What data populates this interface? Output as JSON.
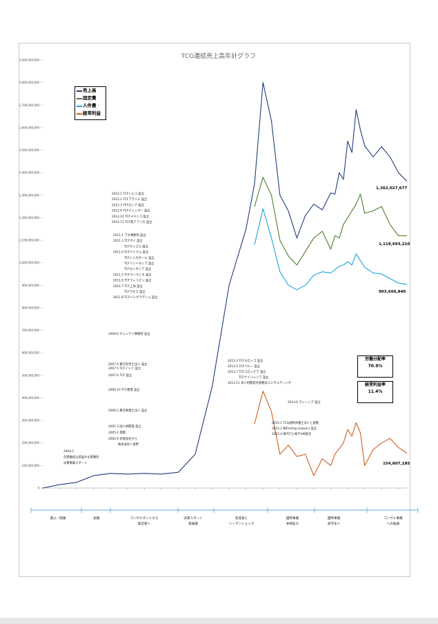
{
  "title": "TCG連結売上高年計グラフ",
  "legend": [
    {
      "label": "売上高",
      "color": "#1f3a78"
    },
    {
      "label": "固定費",
      "color": "#4a7a2a"
    },
    {
      "label": "人件費",
      "color": "#1aa3d9"
    },
    {
      "label": "経常利益",
      "color": "#c8601e"
    }
  ],
  "y_ticks": [
    "0",
    "100,000,000",
    "200,000,000",
    "300,000,000",
    "400,000,000",
    "500,000,000",
    "600,000,000",
    "700,000,000",
    "800,000,000",
    "900,000,000",
    "1,000,000,000",
    "1,100,000,000",
    "1,200,000,000",
    "1,300,000,000",
    "1,400,000,000",
    "1,500,000,000",
    "1,600,000,000",
    "1,700,000,000",
    "1,800,000,000",
    "1,900,000,000"
  ],
  "end_labels": {
    "sales": "1,362,027,677",
    "fixed": "1,119,693,210",
    "personnel": "903,666,840",
    "profit": "154,807,185"
  },
  "kpi": [
    {
      "label": "労働分配率",
      "value": "70.9%"
    },
    {
      "label": "経常利益率",
      "value": "11.4%"
    }
  ],
  "annotations": {
    "start": [
      "2004.5",
      "久野康成公認会計士事務所",
      "派遣事業スタート"
    ],
    "left_group": [
      "2005.3 国人材開発 設立",
      "2005.4 増資",
      "2005.9 有限会社から",
      "株式会社へ変更",
      "2006.2 東京税理士法人 設立",
      "2006.10 TCF香港 設立",
      "2007.4 東京社労士法人 設立",
      "2007.5 TCFインド 設立",
      "2007.6 TCF 設立",
      "2009.6 チェンナイ事務所 設立"
    ],
    "asia_group": [
      "2011.1 ブネ事務所 設立",
      "2011.3 TCFタイ 設立",
      "TCFモンゴル 設立",
      "2011.4 TCFベトナム 設立",
      "TCFシンガポール 設立",
      "TCFインドネシア 設立",
      "TCFカンボジア 設立",
      "2011.5 TCFスリランカ 設立",
      "2011.6 TCFフィリピン 設立",
      "2011.7 TCF上海 設立",
      "TCFラオス 設立",
      "2011.8 TCFバングラデシュ 設立"
    ],
    "latam_group": [
      "2012.1 TCFトルコ 設立",
      "2012.2 TCFブラジル 設立",
      "2012.3 TCFロシア 設立",
      "2012.6 TCFミャンマー 設立",
      "2012.10 TCFメキシコ 設立",
      "2012.11 TCF南アフリカ 設立"
    ],
    "mid_group": [
      "2013.3 TCFモロッコ 設立",
      "2013.5 TCFペルー 設立",
      "2013.7 TCFコロンビア 設立",
      "TCFナイジェリア 設立",
      "2013.11 海人材開発を税務法コンサルティング"
    ],
    "malaysia": "2014.6 マレーシア 設立",
    "recent_group": [
      "2015.1 TCG国際弁護士法人と提携",
      "2015.2 株Finding Lawyers 設立",
      "2015.4 株TCFと株TCHK統合"
    ]
  },
  "phases": [
    [
      "選ぶ・開業"
    ],
    [
      "創業"
    ],
    [
      "コンサルタントから",
      "経営者へ"
    ],
    [
      "派遣スタート",
      "発展期"
    ],
    [
      "急成長と",
      "リーマンショック"
    ],
    [
      "国際事業",
      "本格拡大"
    ],
    [
      "国際事業",
      "高学化へ"
    ],
    [
      "コンサル事業",
      "への転換"
    ]
  ],
  "chart_data": {
    "type": "line",
    "title": "TCG連結売上高年計グラフ",
    "xlabel": "",
    "ylabel": "",
    "ylim": [
      0,
      1900000000
    ],
    "x_count": 86,
    "series": [
      {
        "name": "売上高",
        "color": "#1f3a78",
        "x": [
          0,
          4,
          8,
          12,
          16,
          20,
          24,
          28,
          32,
          36,
          40,
          44,
          48,
          50,
          52,
          54,
          56,
          58,
          60,
          62,
          64,
          66,
          68,
          69,
          70,
          71,
          72,
          73,
          74,
          75,
          76,
          78,
          80,
          82,
          84,
          86
        ],
        "values": [
          0,
          15000000,
          25000000,
          55000000,
          65000000,
          62000000,
          65000000,
          62000000,
          70000000,
          150000000,
          450000000,
          900000000,
          1150000000,
          1350000000,
          1800000000,
          1630000000,
          1300000000,
          1230000000,
          1110000000,
          1210000000,
          1260000000,
          1235000000,
          1310000000,
          1305000000,
          1400000000,
          1370000000,
          1540000000,
          1490000000,
          1680000000,
          1590000000,
          1520000000,
          1470000000,
          1515000000,
          1470000000,
          1400000000,
          1362027677
        ]
      },
      {
        "name": "固定費",
        "color": "#4a7a2a",
        "x": [
          50,
          52,
          54,
          56,
          58,
          60,
          62,
          64,
          66,
          68,
          69,
          70,
          71,
          72,
          73,
          74,
          75,
          76,
          78,
          80,
          82,
          84,
          86
        ],
        "values": [
          1250000000,
          1380000000,
          1300000000,
          1100000000,
          1030000000,
          990000000,
          1050000000,
          1110000000,
          1140000000,
          1060000000,
          1120000000,
          1110000000,
          1170000000,
          1200000000,
          1230000000,
          1260000000,
          1305000000,
          1220000000,
          1230000000,
          1250000000,
          1170000000,
          1120000000,
          1119693210
        ]
      },
      {
        "name": "人件費",
        "color": "#1aa3d9",
        "x": [
          50,
          52,
          54,
          56,
          58,
          60,
          62,
          64,
          66,
          68,
          69,
          70,
          71,
          72,
          73,
          74,
          75,
          76,
          78,
          80,
          82,
          84,
          86
        ],
        "values": [
          1080000000,
          1240000000,
          1110000000,
          960000000,
          900000000,
          880000000,
          900000000,
          945000000,
          960000000,
          955000000,
          970000000,
          985000000,
          990000000,
          1005000000,
          990000000,
          1040000000,
          1010000000,
          980000000,
          955000000,
          950000000,
          930000000,
          910000000,
          903666840
        ]
      },
      {
        "name": "経常利益",
        "color": "#c8601e",
        "x": [
          50,
          52,
          54,
          56,
          58,
          60,
          62,
          64,
          66,
          68,
          69,
          70,
          71,
          72,
          73,
          74,
          75,
          76,
          78,
          80,
          82,
          84,
          86
        ],
        "values": [
          285000000,
          430000000,
          340000000,
          150000000,
          190000000,
          140000000,
          150000000,
          55000000,
          130000000,
          100000000,
          150000000,
          175000000,
          200000000,
          260000000,
          230000000,
          290000000,
          245000000,
          100000000,
          170000000,
          200000000,
          220000000,
          180000000,
          154807185
        ]
      }
    ]
  }
}
